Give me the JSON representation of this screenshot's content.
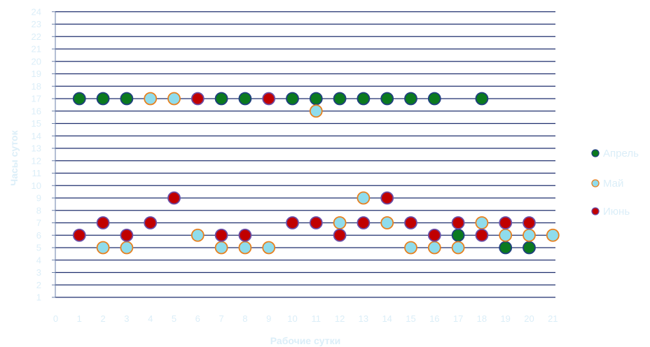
{
  "chart_data": {
    "type": "scatter",
    "xlabel": "Рабочие сутки",
    "ylabel": "Часы суток",
    "xlim": [
      0,
      21
    ],
    "ylim": [
      1,
      24
    ],
    "x_ticks": [
      0,
      1,
      2,
      3,
      4,
      5,
      6,
      7,
      8,
      9,
      10,
      11,
      12,
      13,
      14,
      15,
      16,
      17,
      18,
      19,
      20,
      21
    ],
    "y_ticks": [
      1,
      2,
      3,
      4,
      5,
      6,
      7,
      8,
      9,
      10,
      11,
      12,
      13,
      14,
      15,
      16,
      17,
      18,
      19,
      20,
      21,
      22,
      23,
      24
    ],
    "grid": "horizontal",
    "legend_position": "right",
    "series": [
      {
        "name": "Апрель",
        "fill": "#0b7a1f",
        "stroke": "#1f3f7f",
        "points": [
          [
            1,
            17
          ],
          [
            2,
            17
          ],
          [
            3,
            17
          ],
          [
            7,
            17
          ],
          [
            8,
            17
          ],
          [
            10,
            17
          ],
          [
            11,
            17
          ],
          [
            12,
            17
          ],
          [
            13,
            17
          ],
          [
            14,
            17
          ],
          [
            15,
            17
          ],
          [
            16,
            17
          ],
          [
            18,
            17
          ],
          [
            17,
            6
          ],
          [
            19,
            5
          ],
          [
            20,
            5
          ]
        ]
      },
      {
        "name": "Май",
        "fill": "#8fdcec",
        "stroke": "#e8801e",
        "points": [
          [
            4,
            17
          ],
          [
            5,
            17
          ],
          [
            11,
            16
          ],
          [
            2,
            5
          ],
          [
            3,
            5
          ],
          [
            6,
            6
          ],
          [
            7,
            5
          ],
          [
            8,
            5
          ],
          [
            9,
            5
          ],
          [
            12,
            7
          ],
          [
            13,
            9
          ],
          [
            14,
            7
          ],
          [
            15,
            5
          ],
          [
            16,
            5
          ],
          [
            17,
            5
          ],
          [
            18,
            7
          ],
          [
            19,
            6
          ],
          [
            20,
            6
          ],
          [
            21,
            6
          ]
        ]
      },
      {
        "name": "Июнь",
        "fill": "#c00000",
        "stroke": "#6a4fa8",
        "points": [
          [
            6,
            17
          ],
          [
            9,
            17
          ],
          [
            5,
            9
          ],
          [
            14,
            9
          ],
          [
            1,
            6
          ],
          [
            2,
            7
          ],
          [
            3,
            6
          ],
          [
            4,
            7
          ],
          [
            7,
            6
          ],
          [
            8,
            6
          ],
          [
            10,
            7
          ],
          [
            11,
            7
          ],
          [
            12,
            6
          ],
          [
            13,
            7
          ],
          [
            15,
            7
          ],
          [
            16,
            6
          ],
          [
            17,
            7
          ],
          [
            18,
            6
          ],
          [
            19,
            7
          ],
          [
            20,
            7
          ]
        ]
      }
    ]
  }
}
